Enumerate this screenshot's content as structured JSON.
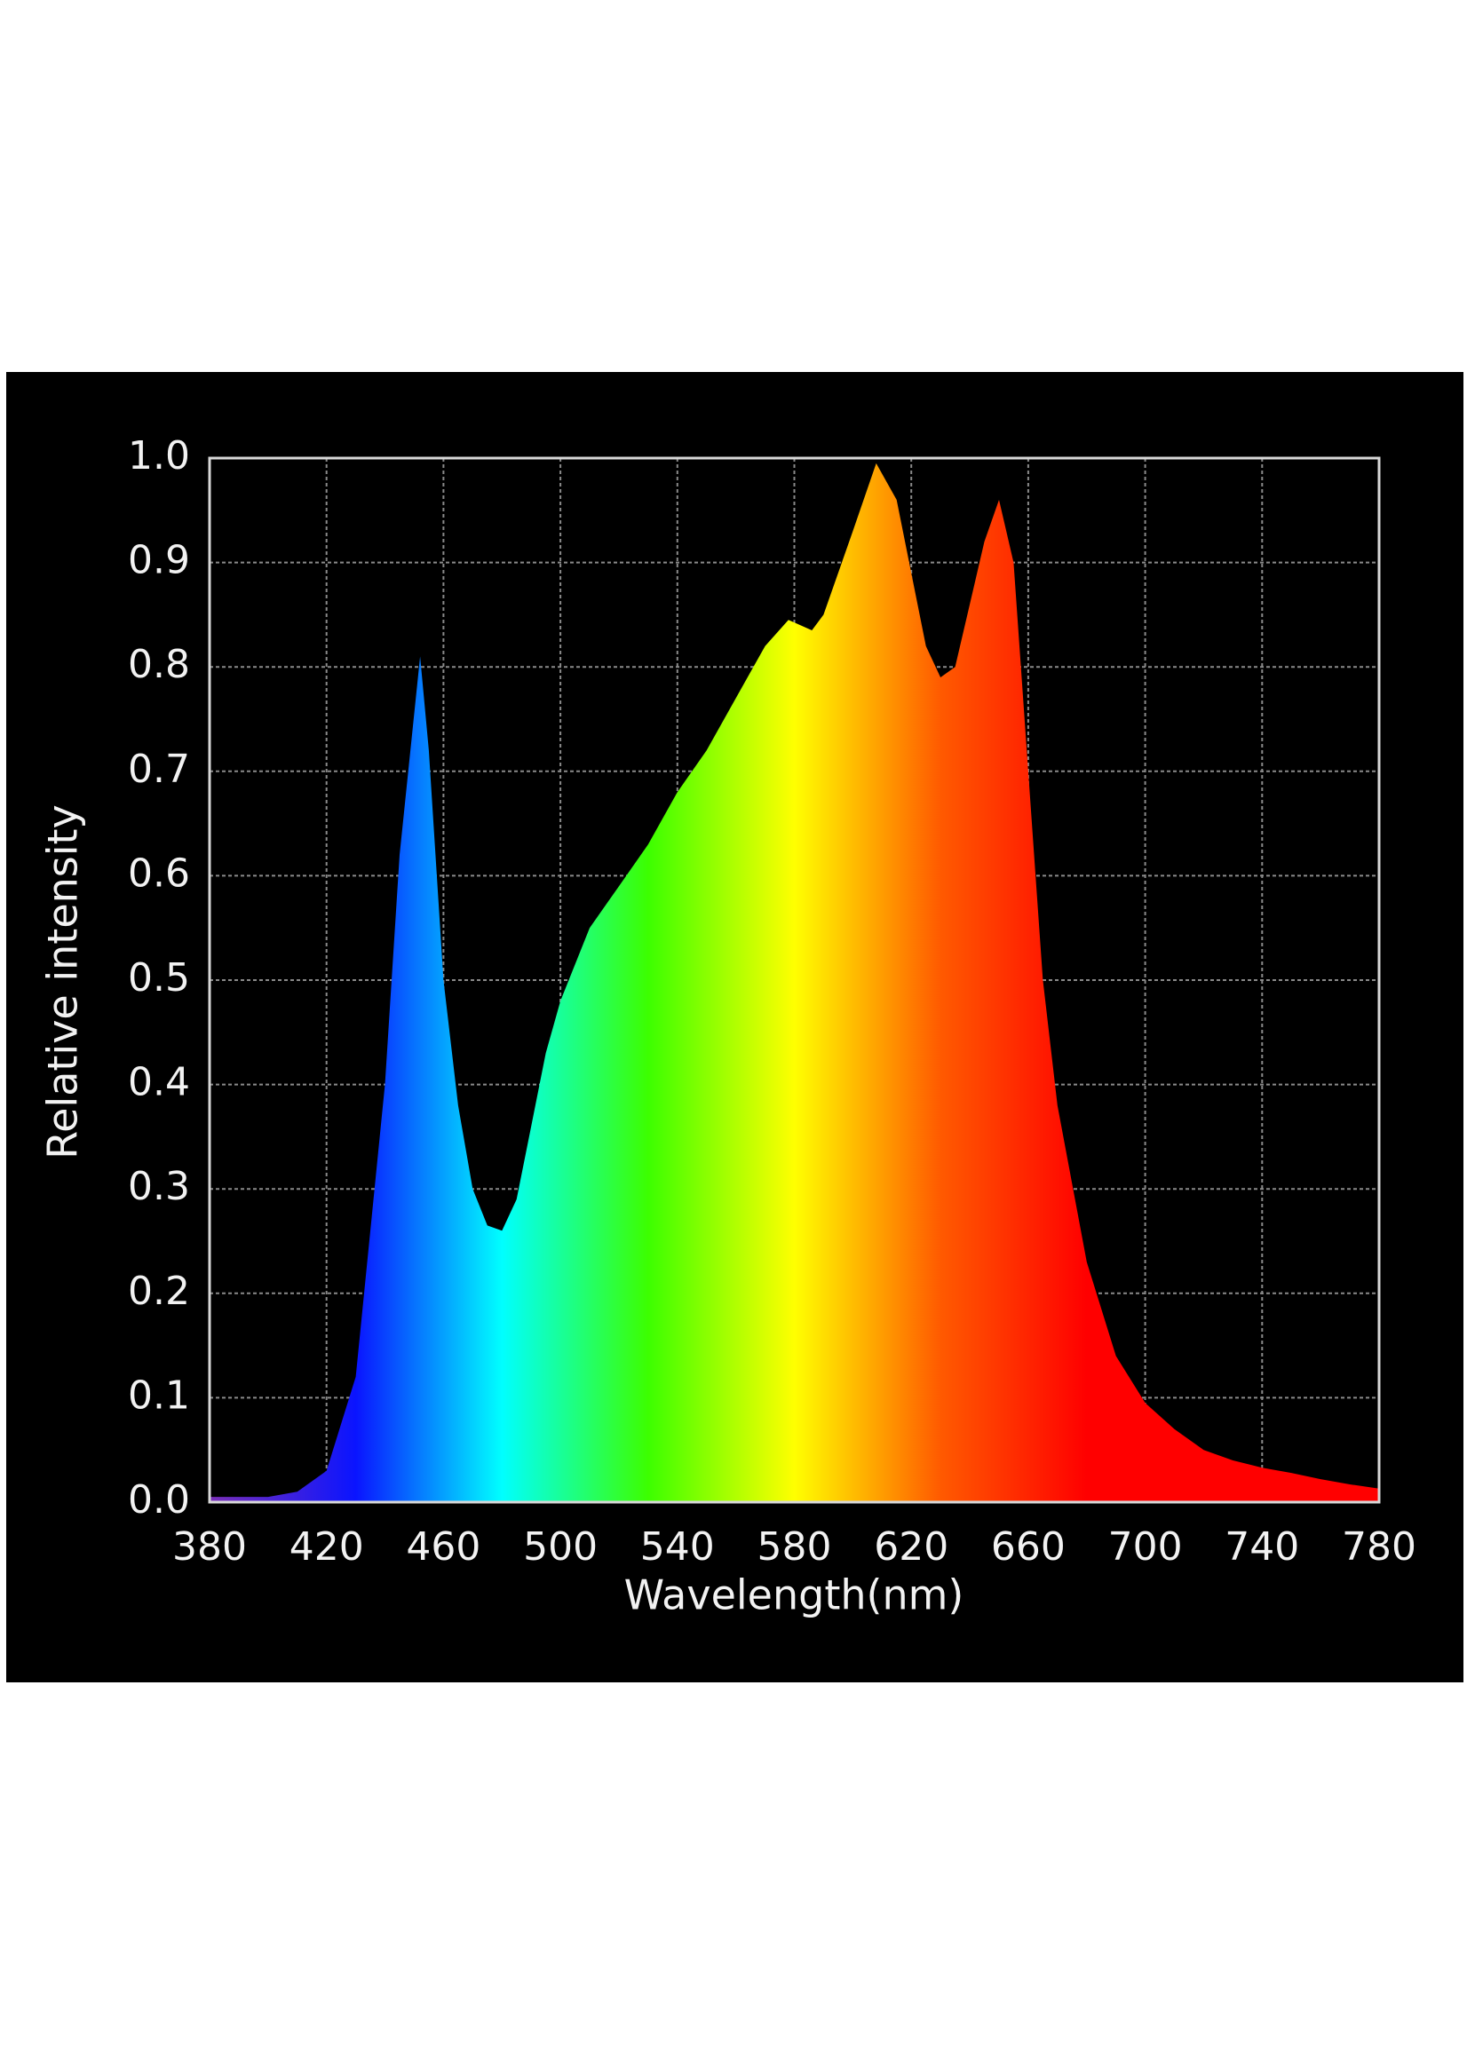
{
  "chart_data": {
    "type": "area",
    "x_label": "Wavelength(nm)",
    "y_label": "Relative intensity",
    "x": [
      380,
      400,
      410,
      420,
      430,
      440,
      445,
      452,
      455,
      460,
      465,
      470,
      475,
      480,
      485,
      490,
      495,
      500,
      510,
      520,
      530,
      540,
      550,
      560,
      570,
      578,
      586,
      590,
      600,
      608,
      615,
      620,
      625,
      630,
      635,
      640,
      645,
      650,
      655,
      660,
      665,
      670,
      680,
      690,
      700,
      710,
      720,
      730,
      740,
      750,
      760,
      770,
      780
    ],
    "values": [
      0.005,
      0.005,
      0.01,
      0.03,
      0.12,
      0.4,
      0.62,
      0.81,
      0.72,
      0.5,
      0.38,
      0.3,
      0.265,
      0.26,
      0.29,
      0.36,
      0.43,
      0.48,
      0.55,
      0.59,
      0.63,
      0.68,
      0.72,
      0.77,
      0.82,
      0.845,
      0.835,
      0.85,
      0.93,
      0.995,
      0.96,
      0.89,
      0.82,
      0.79,
      0.8,
      0.86,
      0.92,
      0.96,
      0.9,
      0.7,
      0.5,
      0.38,
      0.23,
      0.14,
      0.095,
      0.07,
      0.05,
      0.04,
      0.033,
      0.028,
      0.022,
      0.017,
      0.013
    ],
    "colors": [
      "#7a2fb8",
      "#0a14ff",
      "#00ffff",
      "#3cff00",
      "#ffff00",
      "#ff5a00",
      "#ff0000",
      "#ff0000",
      "#ff0000"
    ],
    "xlim": [
      380,
      780
    ],
    "ylim": [
      0,
      1
    ],
    "xticks": [
      380,
      420,
      460,
      500,
      540,
      580,
      620,
      660,
      700,
      740,
      780
    ],
    "yticks": [
      {
        "value": 0,
        "label": "0.0"
      },
      0.1,
      0.2,
      0.3,
      0.4,
      0.5,
      0.6,
      0.7,
      0.8,
      0.9,
      {
        "value": 1,
        "label": "1.0"
      }
    ],
    "grid": true,
    "background": "#000000"
  }
}
